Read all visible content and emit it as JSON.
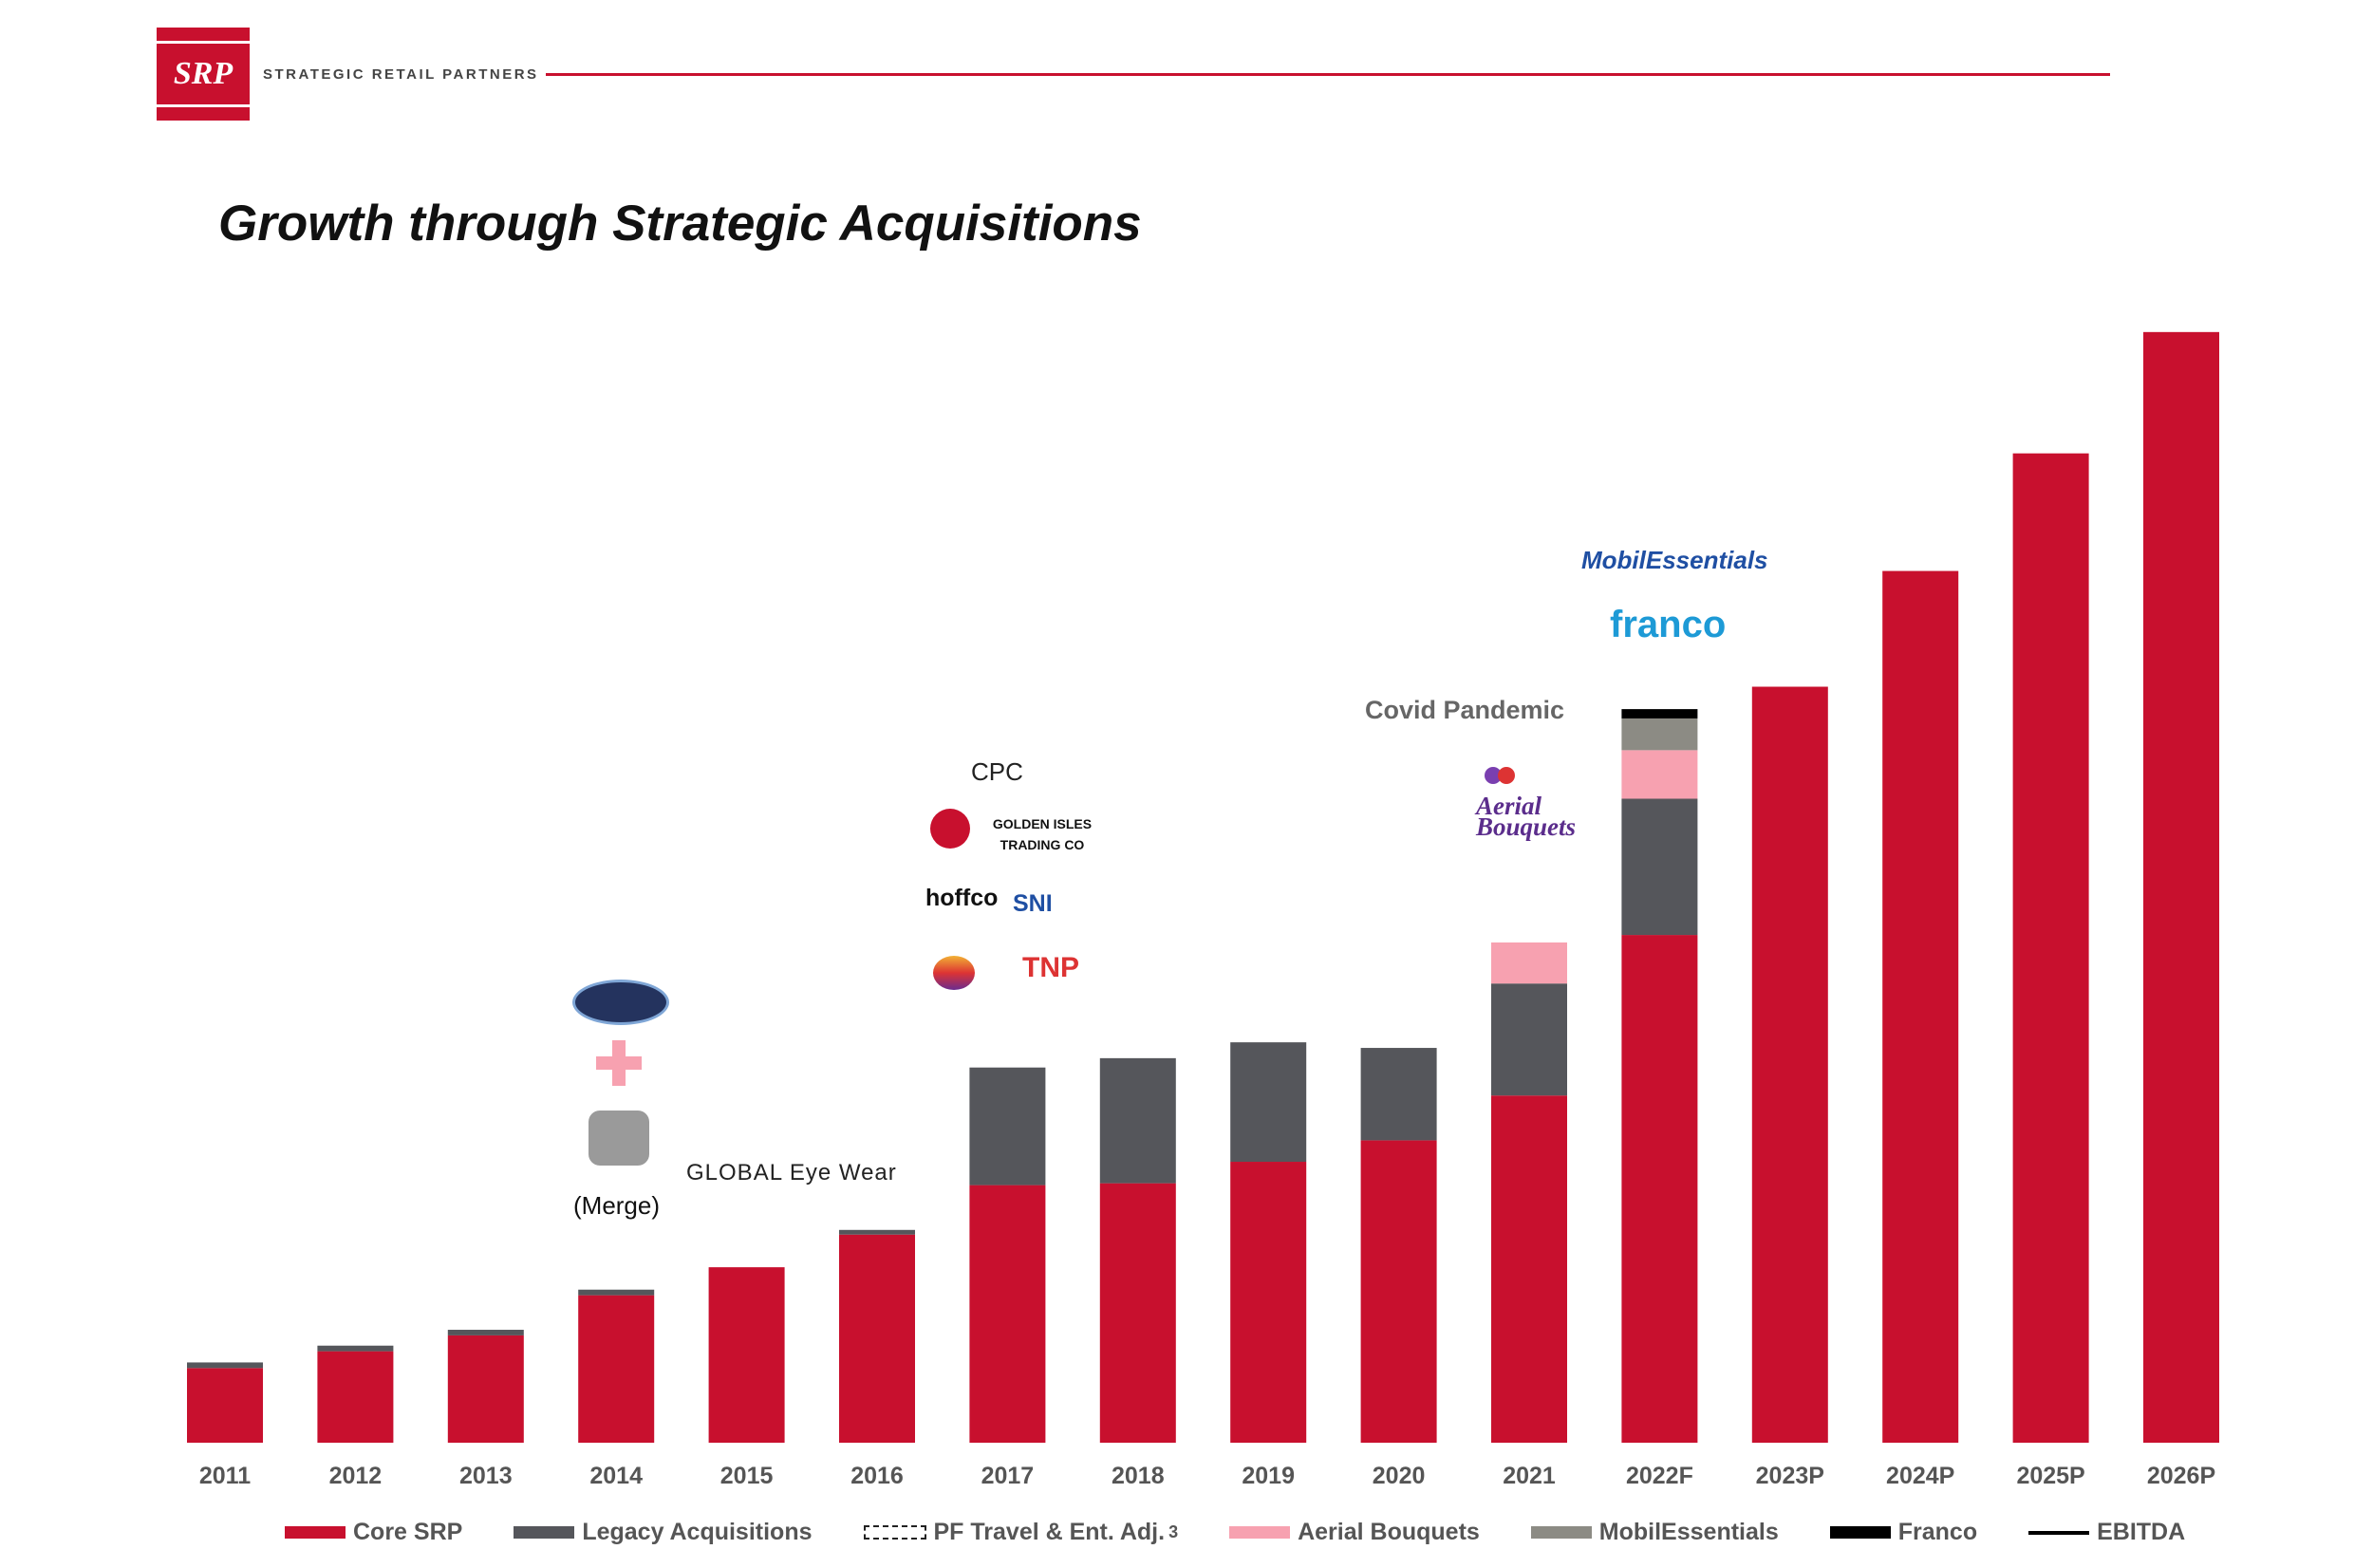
{
  "header": {
    "logo_text": "SRP",
    "company_name": "STRATEGIC RETAIL PARTNERS"
  },
  "title": "Growth through Strategic Acquisitions",
  "colors": {
    "core": "#c8102e",
    "legacy": "#55565b",
    "pf": "#ffffff",
    "aerial": "#f7a1b0",
    "mobil": "#8c8b84",
    "franco": "#000000",
    "accent": "#c8102e"
  },
  "annotations": {
    "covid": "Covid Pandemic",
    "merge": "(Merge)",
    "franco_logo": "franco",
    "mobil_logo": "MobilEssentials",
    "aerial_logo": "Aerial Bouquets",
    "golden_isles_logo": "GOLDEN ISLES TRADING CO",
    "cpc_logo": "CPC",
    "hoffco_logo": "hoffco",
    "sni_logo": "SNI",
    "tnp_logo": "TNP",
    "global_logo": "GLOBAL Eye Wear"
  },
  "chart_data": {
    "type": "bar",
    "stacked": true,
    "categories": [
      "2011",
      "2012",
      "2013",
      "2014",
      "2015",
      "2016",
      "2017",
      "2018",
      "2019",
      "2020",
      "2021",
      "2022F",
      "2023P",
      "2024P",
      "2025P",
      "2026P"
    ],
    "series": [
      {
        "name": "Core SRP",
        "color": "#c8102e",
        "values": [
          8.0,
          9.8,
          11.5,
          15.8,
          18.8,
          22.3,
          27.6,
          27.8,
          30.1,
          32.4,
          37.2,
          54.4,
          81.0,
          93.4,
          106.0,
          119.0
        ]
      },
      {
        "name": "Legacy Acquisitions",
        "color": "#55565b",
        "values": [
          0.6,
          0.6,
          0.6,
          0.6,
          0.0,
          0.5,
          12.6,
          13.4,
          12.8,
          9.9,
          12.0,
          14.6,
          0,
          0,
          0,
          0
        ]
      },
      {
        "name": "PF Travel & Ent. Adj.",
        "color": "#ffffff",
        "values": [
          0,
          0,
          0,
          0,
          0,
          0,
          0,
          0,
          0,
          0,
          0,
          0,
          0,
          0,
          0,
          0
        ]
      },
      {
        "name": "Aerial Bouquets",
        "color": "#f7a1b0",
        "values": [
          0,
          0,
          0,
          0,
          0,
          0,
          0,
          0,
          0,
          0,
          4.4,
          5.2,
          0,
          0,
          0,
          0
        ]
      },
      {
        "name": "MobilEssentials",
        "color": "#8c8b84",
        "values": [
          0,
          0,
          0,
          0,
          0,
          0,
          0,
          0,
          0,
          0,
          0,
          3.4,
          0,
          0,
          0,
          0
        ]
      },
      {
        "name": "Franco",
        "color": "#000000",
        "values": [
          0,
          0,
          0,
          0,
          0,
          0,
          0,
          0,
          0,
          0,
          0,
          1.0,
          0,
          0,
          0,
          0
        ]
      }
    ],
    "legend": [
      "Core SRP",
      "Legacy Acquisitions",
      "PF Travel & Ent. Adj.",
      "Aerial Bouquets",
      "MobilEssentials",
      "Franco",
      "EBITDA"
    ],
    "legend_footnote": "3",
    "ylim": [
      0,
      120
    ],
    "grid": false,
    "legend_position": "bottom"
  }
}
